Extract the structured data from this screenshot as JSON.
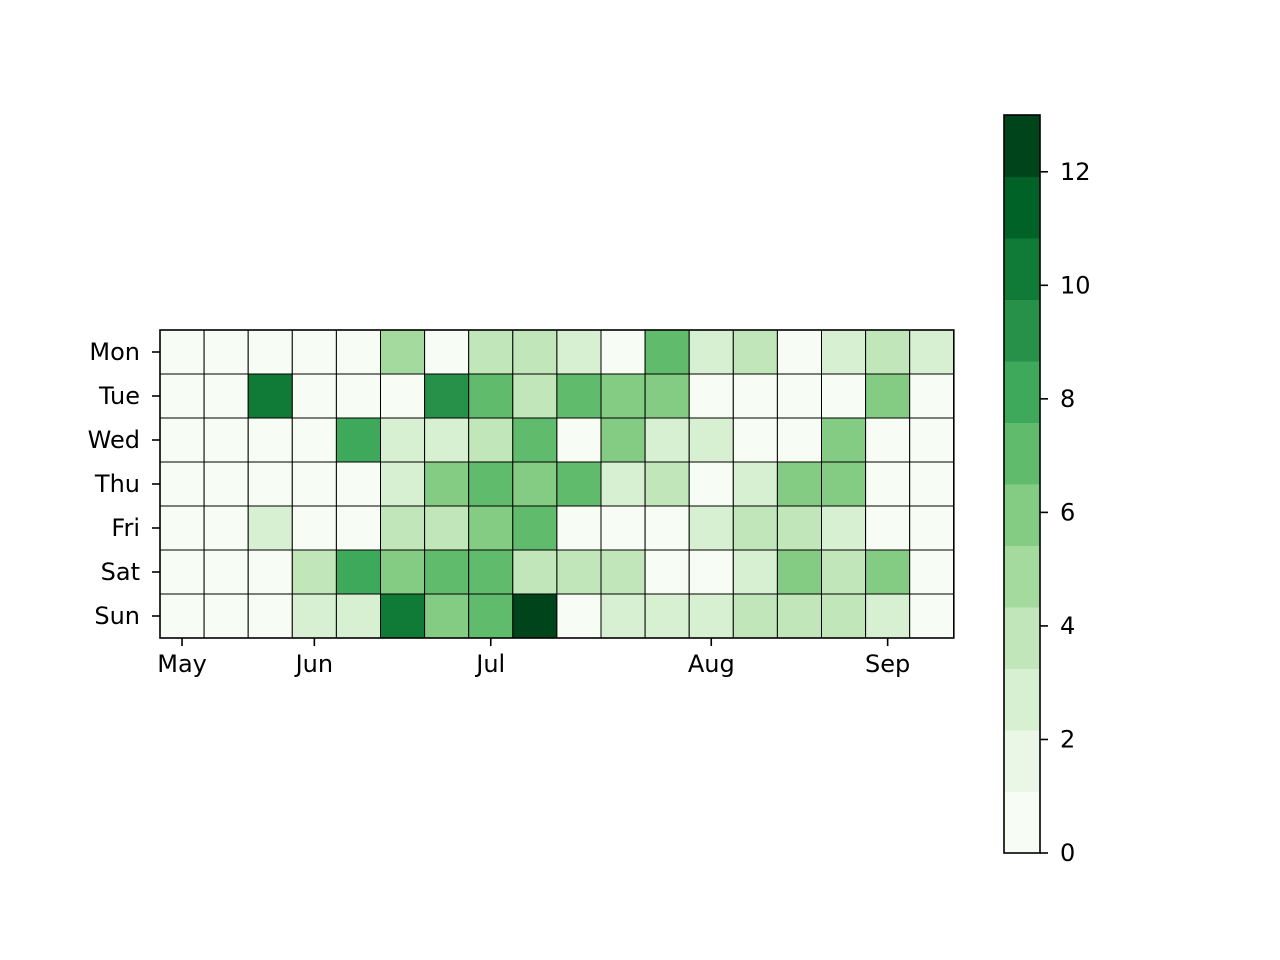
{
  "chart_data": {
    "type": "heatmap",
    "title": "",
    "xlabel": "",
    "ylabel": "",
    "rows": [
      "Mon",
      "Tue",
      "Wed",
      "Thu",
      "Fri",
      "Sat",
      "Sun"
    ],
    "month_ticks": [
      {
        "label": "May",
        "week": -0.5
      },
      {
        "label": "Jun",
        "week": 2.5
      },
      {
        "label": "Jul",
        "week": 6.5
      },
      {
        "label": "Aug",
        "week": 11.5
      },
      {
        "label": "Sep",
        "week": 15.5
      }
    ],
    "values": [
      [
        0,
        0,
        0,
        0,
        0,
        5,
        1,
        4,
        4,
        3,
        0,
        7,
        3,
        4,
        0,
        3,
        4,
        3
      ],
      [
        0,
        0,
        10,
        0,
        0,
        1,
        9,
        7,
        4,
        7,
        6,
        6,
        1,
        0,
        1,
        0,
        6,
        0
      ],
      [
        0,
        0,
        0,
        1,
        8,
        3,
        3,
        4,
        7,
        0,
        6,
        3,
        3,
        1,
        1,
        6,
        0,
        0
      ],
      [
        0,
        0,
        0,
        0,
        1,
        3,
        6,
        7,
        6,
        7,
        3,
        4,
        0,
        3,
        6,
        6,
        1,
        0
      ],
      [
        0,
        0,
        3,
        0,
        0,
        4,
        4,
        6,
        7,
        0,
        0,
        1,
        3,
        4,
        4,
        3,
        0,
        0
      ],
      [
        0,
        0,
        1,
        4,
        8,
        6,
        7,
        7,
        4,
        4,
        4,
        1,
        1,
        3,
        6,
        4,
        6,
        0
      ],
      [
        0,
        0,
        0,
        3,
        3,
        10,
        6,
        7,
        13,
        1,
        3,
        3,
        3,
        4,
        4,
        4,
        3,
        0
      ]
    ],
    "colorbar": {
      "range": [
        0,
        13
      ],
      "ticks": [
        0,
        2,
        4,
        6,
        8,
        10,
        12
      ],
      "bins": 12,
      "colors": [
        "#f7fcf5",
        "#e5f5e0",
        "#c7e9c0",
        "#a1d99b",
        "#74c476",
        "#41ab5d",
        "#238b45",
        "#006d2c",
        "#00441b"
      ]
    }
  }
}
